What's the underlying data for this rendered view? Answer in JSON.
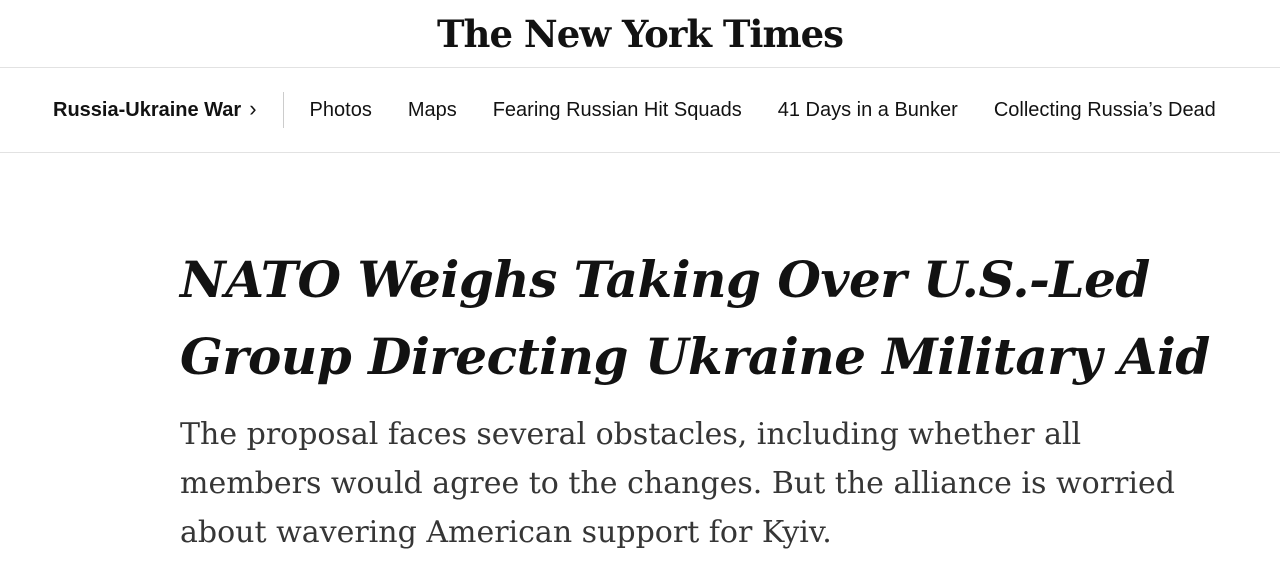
{
  "brand": {
    "logo_text": "The New York Times"
  },
  "nav": {
    "section": {
      "label": "Russia-Ukraine War",
      "chevron_icon": "›"
    },
    "items": [
      {
        "label": "Photos"
      },
      {
        "label": "Maps"
      },
      {
        "label": "Fearing Russian Hit Squads"
      },
      {
        "label": "41 Days in a Bunker"
      },
      {
        "label": "Collecting Russia’s Dead"
      }
    ]
  },
  "article": {
    "headline": "NATO Weighs Taking Over U.S.-Led Group Directing Ukraine Military Aid",
    "headline_lines": [
      "NATO Weighs Taking Over U.S.-Led",
      "Group Directing Ukraine Military Aid"
    ],
    "summary": "The proposal faces several obstacles, including whether all members would agree to the changes. But the alliance is worried about wavering American support for Kyiv.",
    "summary_lines": [
      "The proposal faces several obstacles, including whether all",
      "members would agree to the changes. But the alliance is worried",
      "about wavering American support for Kyiv."
    ]
  },
  "colors": {
    "text_primary": "#121212",
    "text_summary": "#363636",
    "divider": "#e2e2e2"
  }
}
